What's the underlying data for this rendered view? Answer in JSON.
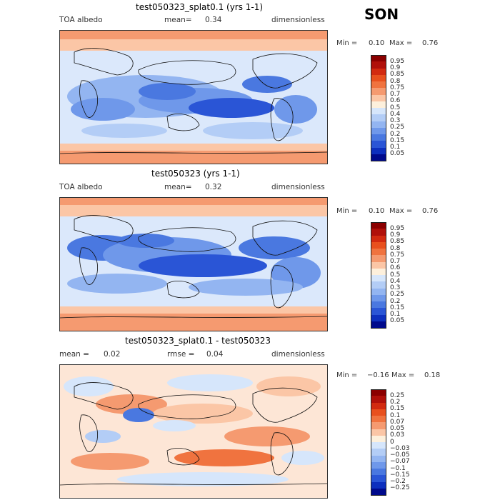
{
  "season": "SON",
  "panels": [
    {
      "title": "test050323_splat0.1 (yrs 1-1)",
      "left_label": "TOA albedo",
      "mean_label": "mean=",
      "mean_value": "0.34",
      "units": "dimensionless",
      "min_label": "Min =",
      "min_value": "0.10",
      "max_label": "Max =",
      "max_value": "0.76",
      "colorbar_labels": [
        "0.95",
        "0.9",
        "0.85",
        "0.8",
        "0.75",
        "0.7",
        "0.6",
        "0.5",
        "0.4",
        "0.3",
        "0.25",
        "0.2",
        "0.15",
        "0.1",
        "0.05"
      ]
    },
    {
      "title": "test050323 (yrs 1-1)",
      "left_label": "TOA albedo",
      "mean_label": "mean=",
      "mean_value": "0.32",
      "units": "dimensionless",
      "min_label": "Min =",
      "min_value": "0.10",
      "max_label": "Max =",
      "max_value": "0.76",
      "colorbar_labels": [
        "0.95",
        "0.9",
        "0.85",
        "0.8",
        "0.75",
        "0.7",
        "0.6",
        "0.5",
        "0.4",
        "0.3",
        "0.25",
        "0.2",
        "0.15",
        "0.1",
        "0.05"
      ]
    },
    {
      "title": "test050323_splat0.1 - test050323",
      "mean_label": "mean =",
      "mean_value": "0.02",
      "rmse_label": "rmse =",
      "rmse_value": "0.04",
      "units": "dimensionless",
      "min_label": "Min =",
      "min_value": "−0.16",
      "max_label": "Max =",
      "max_value": "0.18",
      "colorbar_labels": [
        "0.25",
        "0.2",
        "0.15",
        "0.1",
        "0.07",
        "0.05",
        "0.03",
        "0",
        "−0.03",
        "−0.05",
        "−0.07",
        "−0.1",
        "−0.15",
        "−0.2",
        "−0.25"
      ]
    }
  ],
  "colors": {
    "scale": [
      "#8b0000",
      "#b0100a",
      "#d22a10",
      "#e8501e",
      "#f0733f",
      "#f59a70",
      "#fbc6a6",
      "#fdf0dc",
      "#d6e6fb",
      "#b3cdf6",
      "#93b5f1",
      "#6f98ea",
      "#4a78e0",
      "#2a55d6",
      "#0d2fbe",
      "#000a8c"
    ],
    "ocean_light": "#dbe8fb",
    "polar_warm": "#f5a583",
    "land_outline": "#111111"
  }
}
